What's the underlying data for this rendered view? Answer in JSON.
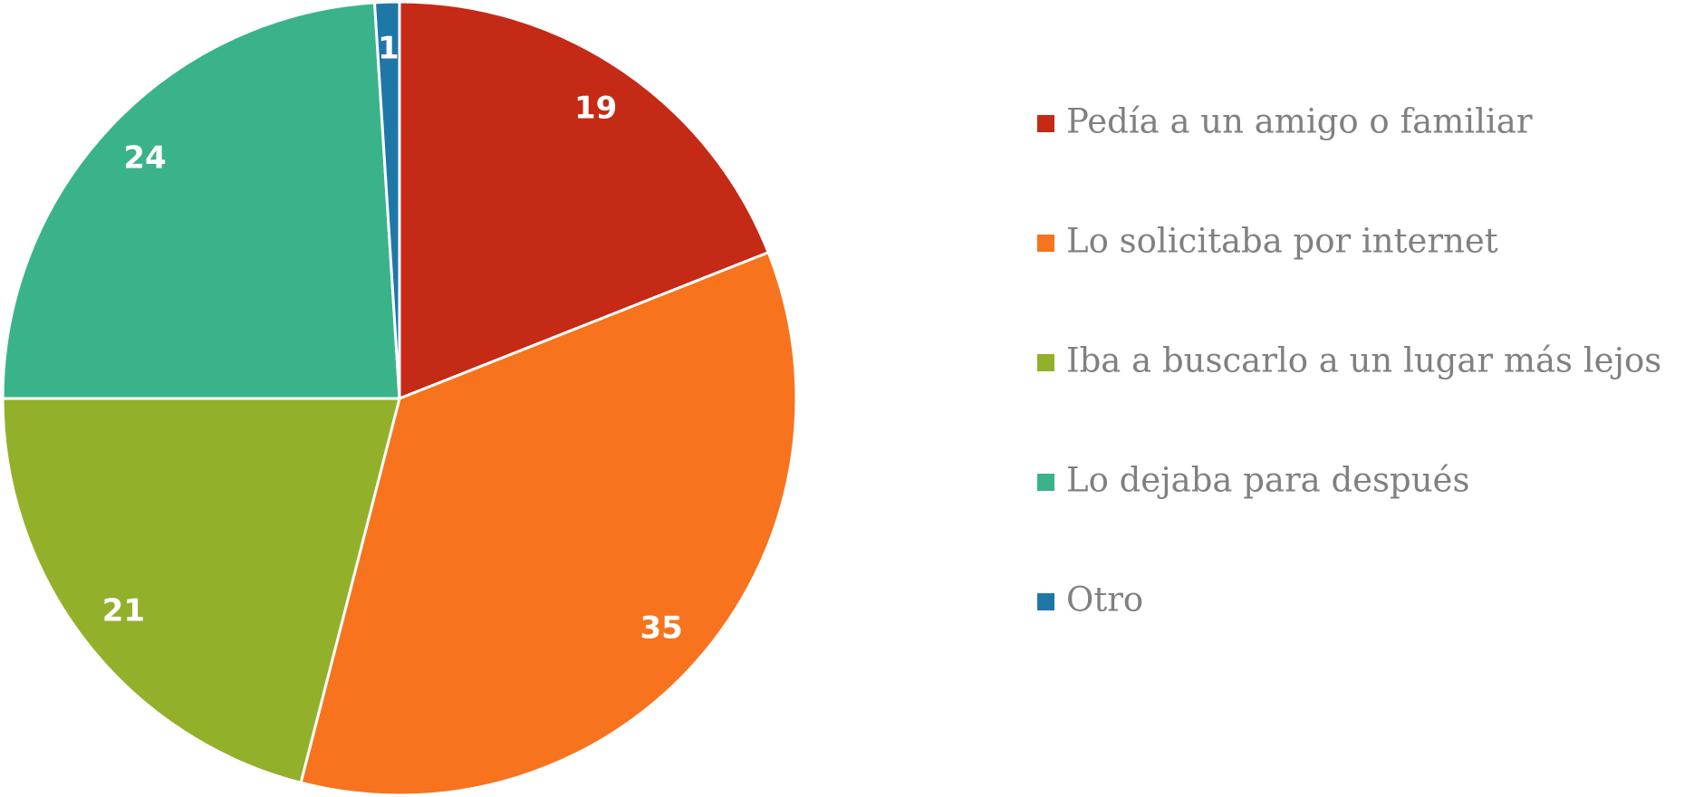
{
  "chart_data": {
    "type": "pie",
    "categories": [
      "Pedía a un amigo o familiar",
      "Lo solicitaba por internet",
      "Iba a buscarlo a un lugar más lejos",
      "Lo dejaba para después",
      "Otro"
    ],
    "values": [
      19,
      35,
      21,
      24,
      1
    ],
    "colors": [
      "#c42a15",
      "#f7731e",
      "#93b02a",
      "#3ab38b",
      "#1f77a8"
    ],
    "legend": "right"
  }
}
